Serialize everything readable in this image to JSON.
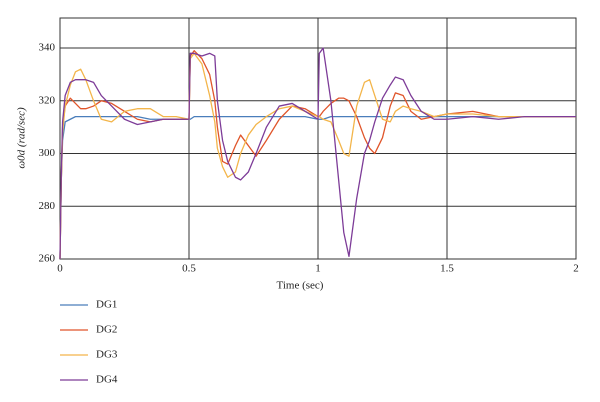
{
  "chart_data": {
    "type": "line",
    "xlabel": "Time (sec)",
    "ylabel": "ω0d (rad/sec)",
    "x": [
      0,
      0.005,
      0.01,
      0.02,
      0.04,
      0.06,
      0.08,
      0.1,
      0.13,
      0.16,
      0.2,
      0.25,
      0.3,
      0.35,
      0.4,
      0.45,
      0.5,
      0.505,
      0.52,
      0.55,
      0.58,
      0.6,
      0.61,
      0.63,
      0.65,
      0.68,
      0.7,
      0.73,
      0.76,
      0.8,
      0.85,
      0.9,
      0.95,
      1.0,
      1.005,
      1.02,
      1.05,
      1.08,
      1.1,
      1.12,
      1.15,
      1.18,
      1.2,
      1.22,
      1.25,
      1.28,
      1.3,
      1.33,
      1.36,
      1.4,
      1.45,
      1.5,
      1.6,
      1.7,
      1.8,
      2.0
    ],
    "series": [
      {
        "name": "DG1",
        "color": "#4a7ebb",
        "values": [
          260,
          290,
          305,
          312,
          313,
          314,
          314,
          314,
          314,
          314,
          314,
          314,
          314,
          313,
          313,
          313,
          313,
          313,
          314,
          314,
          314,
          314,
          314,
          314,
          314,
          314,
          314,
          314,
          314,
          314,
          314,
          314,
          314,
          313,
          313,
          313,
          314,
          314,
          314,
          314,
          314,
          314,
          314,
          314,
          314,
          314,
          314,
          314,
          314,
          314,
          314,
          314,
          314,
          314,
          314,
          314
        ]
      },
      {
        "name": "DG2",
        "color": "#e0552a",
        "values": [
          260,
          290,
          310,
          318,
          321,
          319,
          317,
          317,
          318,
          320,
          319,
          316,
          313,
          312,
          313,
          313,
          313,
          337,
          339,
          336,
          330,
          320,
          310,
          297,
          296,
          303,
          307,
          303,
          299,
          305,
          313,
          318,
          317,
          314,
          314,
          316,
          319,
          321,
          321,
          320,
          314,
          306,
          302,
          300,
          306,
          318,
          323,
          322,
          316,
          313,
          314,
          315,
          316,
          314,
          314,
          314
        ]
      },
      {
        "name": "DG3",
        "color": "#f3b54a",
        "values": [
          260,
          290,
          308,
          318,
          326,
          331,
          332,
          328,
          320,
          313,
          312,
          316,
          317,
          317,
          314,
          314,
          313,
          336,
          338,
          334,
          322,
          312,
          302,
          295,
          291,
          293,
          300,
          307,
          311,
          314,
          317,
          318,
          316,
          314,
          314,
          313,
          312,
          305,
          300,
          299,
          318,
          327,
          328,
          322,
          313,
          312,
          316,
          318,
          317,
          316,
          314,
          315,
          315,
          314,
          314,
          314
        ]
      },
      {
        "name": "DG4",
        "color": "#7d3c98",
        "values": [
          260,
          292,
          312,
          322,
          327,
          328,
          328,
          328,
          327,
          322,
          318,
          313,
          311,
          312,
          313,
          313,
          313,
          338,
          338,
          337,
          338,
          337,
          320,
          305,
          297,
          291,
          290,
          293,
          300,
          310,
          318,
          319,
          316,
          313,
          338,
          340,
          320,
          290,
          270,
          261,
          283,
          300,
          305,
          312,
          321,
          326,
          329,
          328,
          322,
          316,
          313,
          313,
          314,
          313,
          314,
          314
        ]
      }
    ],
    "xlim": [
      0,
      2
    ],
    "xticks": [
      0,
      0.5,
      1,
      1.5,
      2
    ],
    "ylim": [
      260,
      351.4
    ],
    "yticks": [
      260,
      280,
      300,
      320,
      340
    ],
    "grid": true,
    "legend": "below"
  }
}
